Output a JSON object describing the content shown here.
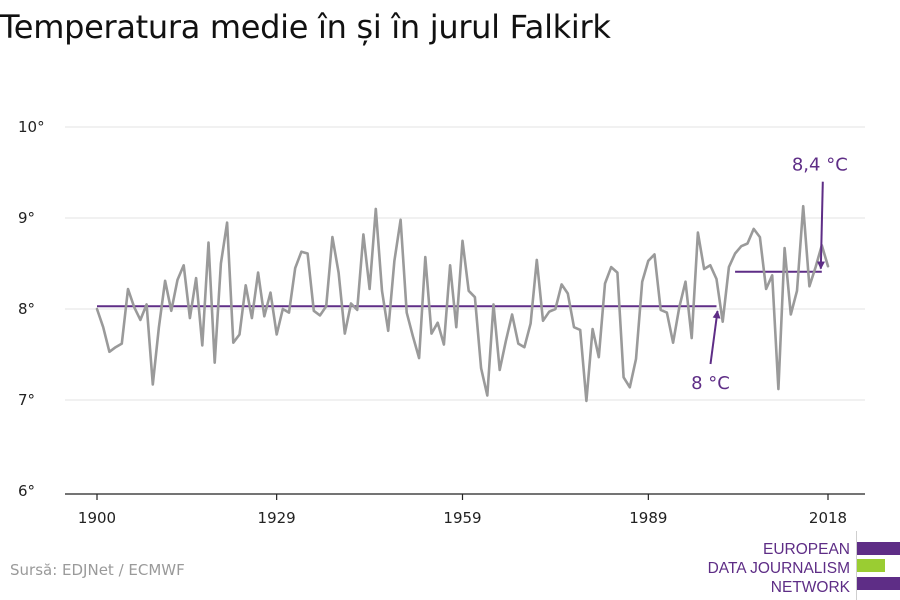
{
  "title": "Temperatura medie în și în jurul Falkirk",
  "source": "Sursă: EDJNet / ECMWF",
  "logo": {
    "lines": [
      "EUROPEAN",
      "DATA JOURNALISM",
      "NETWORK"
    ],
    "colors": [
      "#5e2d86",
      "#9acd32",
      "#5e2d86"
    ]
  },
  "colors": {
    "series": "#9a9a9a",
    "average": "#5e2d86",
    "grid": "#e3e3e3",
    "axis": "#222222"
  },
  "chart_data": {
    "type": "line",
    "title": "Temperatura medie în și în jurul Falkirk",
    "xlabel": "",
    "ylabel": "",
    "xlim": [
      1900,
      2018
    ],
    "ylim": [
      6,
      10
    ],
    "xticks": [
      1900,
      1929,
      1959,
      1989,
      2018
    ],
    "xtick_labels": [
      "1900",
      "1929",
      "1959",
      "1989",
      "2018"
    ],
    "yticks": [
      6,
      7,
      8,
      9,
      10
    ],
    "ytick_labels": [
      "6°",
      "7°",
      "8°",
      "9°",
      "10°"
    ],
    "grid": true,
    "series": [
      {
        "values": [
          [
            1900,
            8.0
          ],
          [
            1901,
            7.8
          ],
          [
            1902,
            7.53
          ],
          [
            1903,
            7.58
          ],
          [
            1904,
            7.62
          ],
          [
            1905,
            8.22
          ],
          [
            1906,
            8.02
          ],
          [
            1907,
            7.88
          ],
          [
            1908,
            8.05
          ],
          [
            1909,
            7.17
          ],
          [
            1910,
            7.8
          ],
          [
            1911,
            8.31
          ],
          [
            1912,
            7.98
          ],
          [
            1913,
            8.32
          ],
          [
            1914,
            8.48
          ],
          [
            1915,
            7.9
          ],
          [
            1916,
            8.34
          ],
          [
            1917,
            7.6
          ],
          [
            1918,
            8.73
          ],
          [
            1919,
            7.41
          ],
          [
            1920,
            8.5
          ],
          [
            1921,
            8.95
          ],
          [
            1922,
            7.63
          ],
          [
            1923,
            7.72
          ],
          [
            1924,
            8.26
          ],
          [
            1925,
            7.9
          ],
          [
            1926,
            8.4
          ],
          [
            1927,
            7.92
          ],
          [
            1928,
            8.18
          ],
          [
            1929,
            7.72
          ],
          [
            1930,
            8.0
          ],
          [
            1931,
            7.96
          ],
          [
            1932,
            8.45
          ],
          [
            1933,
            8.63
          ],
          [
            1934,
            8.61
          ],
          [
            1935,
            7.98
          ],
          [
            1936,
            7.93
          ],
          [
            1937,
            8.03
          ],
          [
            1938,
            8.79
          ],
          [
            1939,
            8.4
          ],
          [
            1940,
            7.73
          ],
          [
            1941,
            8.06
          ],
          [
            1942,
            7.99
          ],
          [
            1943,
            8.82
          ],
          [
            1944,
            8.22
          ],
          [
            1945,
            9.1
          ],
          [
            1946,
            8.2
          ],
          [
            1947,
            7.76
          ],
          [
            1948,
            8.53
          ],
          [
            1949,
            8.98
          ],
          [
            1950,
            7.96
          ],
          [
            1951,
            7.7
          ],
          [
            1952,
            7.46
          ],
          [
            1953,
            8.57
          ],
          [
            1954,
            7.73
          ],
          [
            1955,
            7.85
          ],
          [
            1956,
            7.61
          ],
          [
            1957,
            8.48
          ],
          [
            1958,
            7.8
          ],
          [
            1959,
            8.75
          ],
          [
            1960,
            8.2
          ],
          [
            1961,
            8.13
          ],
          [
            1962,
            7.35
          ],
          [
            1963,
            7.05
          ],
          [
            1964,
            8.05
          ],
          [
            1965,
            7.33
          ],
          [
            1966,
            7.65
          ],
          [
            1967,
            7.94
          ],
          [
            1968,
            7.62
          ],
          [
            1969,
            7.58
          ],
          [
            1970,
            7.84
          ],
          [
            1971,
            8.54
          ],
          [
            1972,
            7.87
          ],
          [
            1973,
            7.97
          ],
          [
            1974,
            8.0
          ],
          [
            1975,
            8.27
          ],
          [
            1976,
            8.17
          ],
          [
            1977,
            7.8
          ],
          [
            1978,
            7.77
          ],
          [
            1979,
            6.99
          ],
          [
            1980,
            7.78
          ],
          [
            1981,
            7.47
          ],
          [
            1982,
            8.28
          ],
          [
            1983,
            8.46
          ],
          [
            1984,
            8.4
          ],
          [
            1985,
            7.25
          ],
          [
            1986,
            7.14
          ],
          [
            1987,
            7.45
          ],
          [
            1988,
            8.3
          ],
          [
            1989,
            8.53
          ],
          [
            1990,
            8.6
          ],
          [
            1991,
            7.99
          ],
          [
            1992,
            7.96
          ],
          [
            1993,
            7.63
          ],
          [
            1994,
            8.02
          ],
          [
            1995,
            8.3
          ],
          [
            1996,
            7.68
          ],
          [
            1997,
            8.84
          ],
          [
            1998,
            8.44
          ],
          [
            1999,
            8.48
          ],
          [
            2000,
            8.33
          ],
          [
            2001,
            7.86
          ],
          [
            2002,
            8.46
          ],
          [
            2003,
            8.61
          ],
          [
            2004,
            8.69
          ],
          [
            2005,
            8.72
          ],
          [
            2006,
            8.88
          ],
          [
            2007,
            8.79
          ],
          [
            2008,
            8.22
          ],
          [
            2009,
            8.37
          ],
          [
            2010,
            7.12
          ],
          [
            2011,
            8.67
          ],
          [
            2012,
            7.94
          ],
          [
            2013,
            8.2
          ],
          [
            2014,
            9.13
          ],
          [
            2015,
            8.25
          ],
          [
            2016,
            8.46
          ],
          [
            2017,
            8.7
          ],
          [
            2018,
            8.47
          ]
        ]
      }
    ],
    "average_lines": [
      {
        "x": [
          1900,
          2000
        ],
        "y": 8.03
      },
      {
        "x": [
          2003,
          2017
        ],
        "y": 8.41
      }
    ],
    "annotations": [
      {
        "text": "8 °C",
        "x": 2000,
        "y": 8.0
      },
      {
        "text": "8,4 °C",
        "x": 2017,
        "y": 8.41
      }
    ]
  }
}
